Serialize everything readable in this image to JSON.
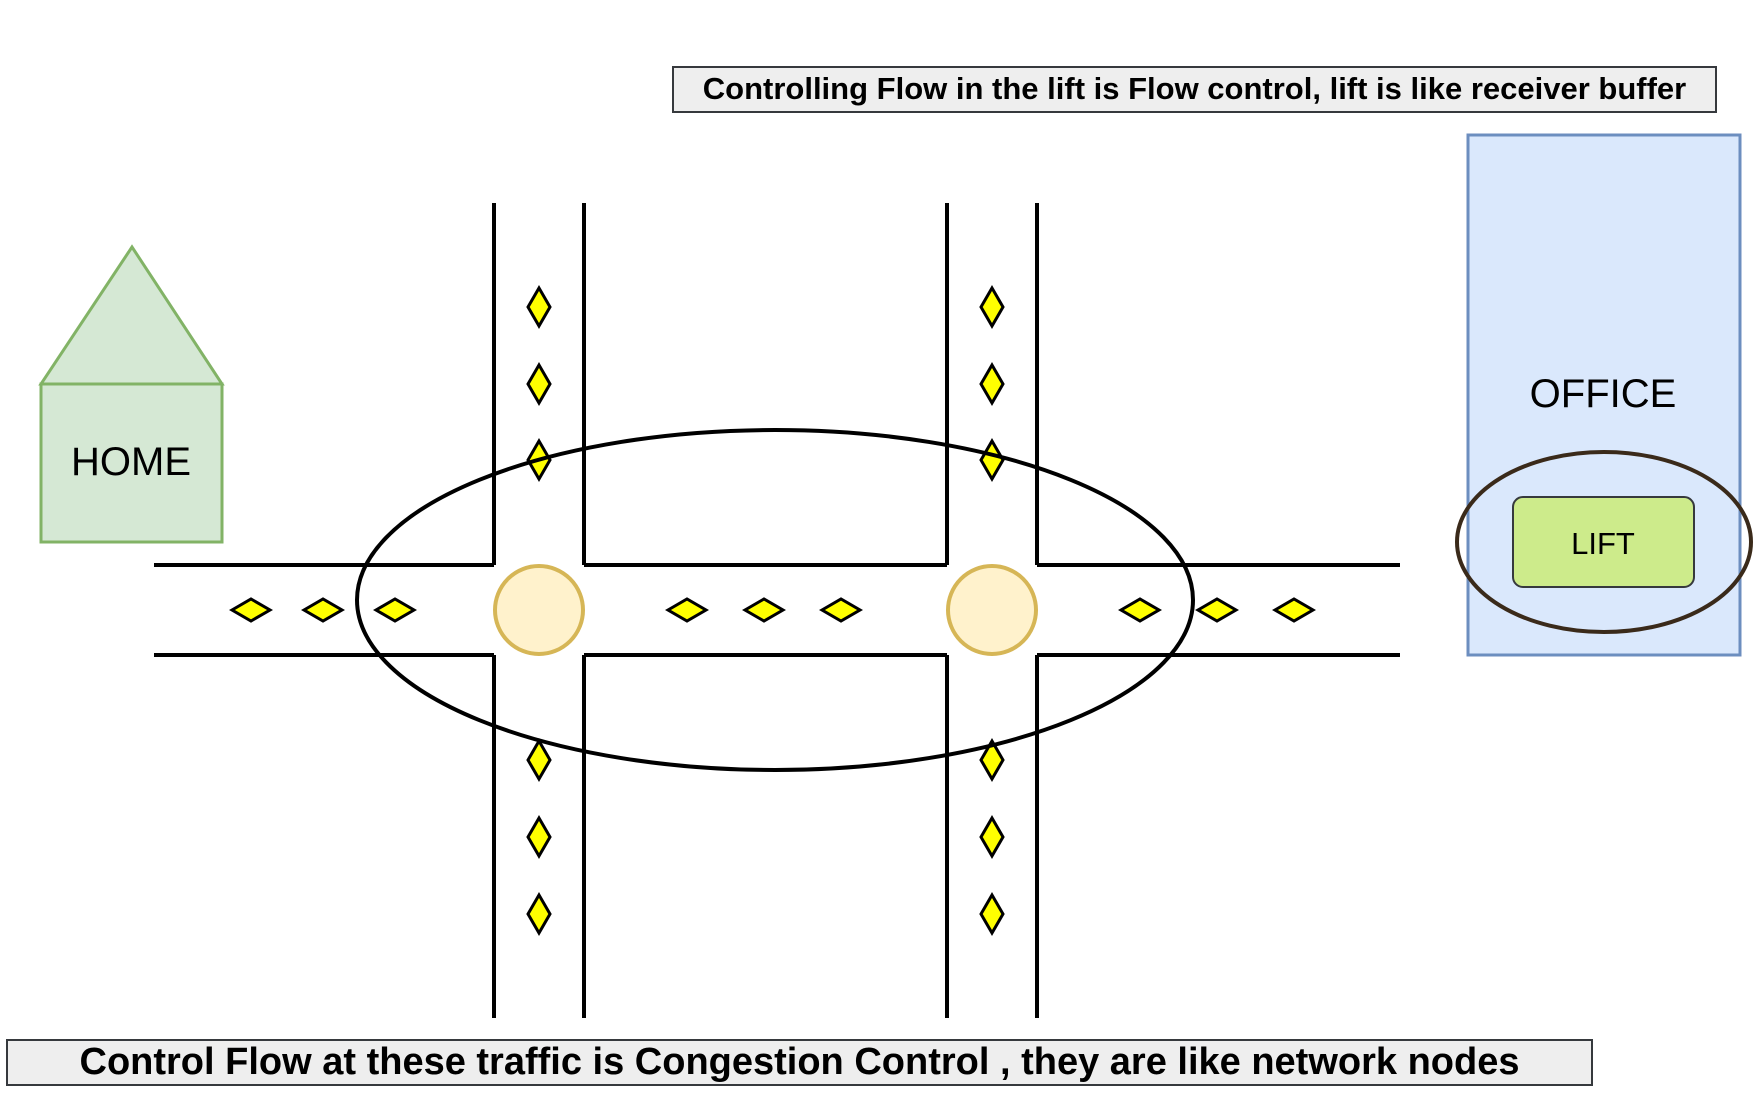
{
  "labels": {
    "home": "HOME",
    "office": "OFFICE",
    "lift": "LIFT"
  },
  "captions": {
    "flow_control": "Controlling Flow in the lift is Flow control, lift is like receiver buffer",
    "congestion_control": "Control  Flow at these traffic is Congestion Control , they are like network nodes"
  },
  "colors": {
    "home_fill": "#d5e8d4",
    "home_stroke": "#82b366",
    "office_fill": "#dae8fc",
    "office_stroke": "#6c8ebf",
    "lift_fill": "#cdeb8b",
    "lift_stroke": "#36393d",
    "lift_ellipse_stroke": "#3a2a1a",
    "car_fill": "#ffff00",
    "signal_fill": "#fff2cc",
    "signal_stroke": "#d6b656",
    "caption_fill": "#eeeeee"
  },
  "icons": {
    "car": "diamond",
    "traffic_signal": "circle"
  }
}
